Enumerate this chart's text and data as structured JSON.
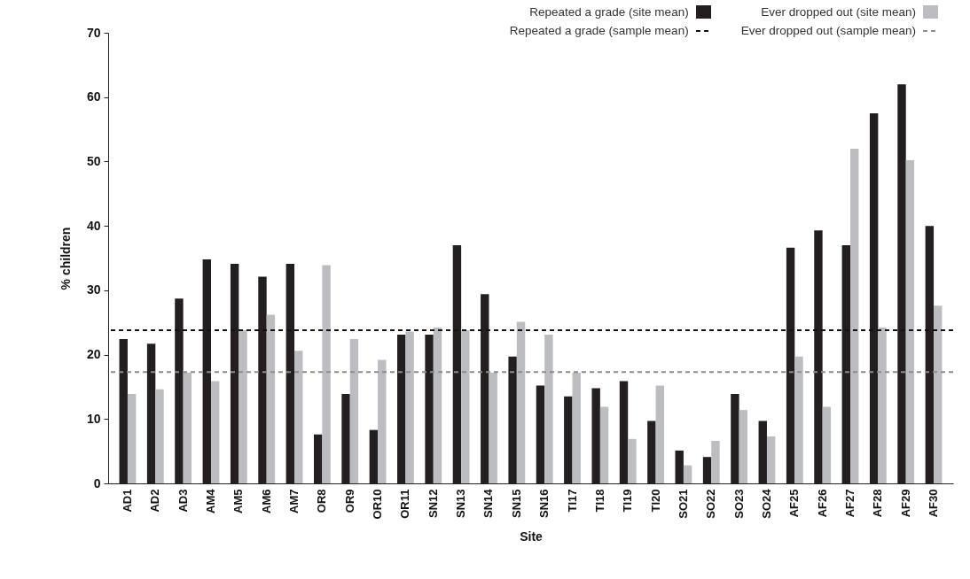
{
  "chart_data": {
    "type": "bar",
    "xlabel": "Site",
    "ylabel": "% children",
    "categories": [
      "AD1",
      "AD2",
      "AD3",
      "AM4",
      "AM5",
      "AM6",
      "AM7",
      "OR8",
      "OR9",
      "OR10",
      "OR11",
      "SN12",
      "SN13",
      "SN14",
      "SN15",
      "SN16",
      "TI17",
      "TI18",
      "TI19",
      "TI20",
      "SO21",
      "SO22",
      "SO23",
      "SO24",
      "AF25",
      "AF26",
      "AF27",
      "AF28",
      "AF29",
      "AF30"
    ],
    "series": [
      {
        "name": "Repeated a grade (site mean)",
        "color": "#231f20",
        "values": [
          22.4,
          21.7,
          28.7,
          34.8,
          34.1,
          32.1,
          34.1,
          7.6,
          13.9,
          8.3,
          23.1,
          23.1,
          37.0,
          29.4,
          19.7,
          15.2,
          13.5,
          14.8,
          15.9,
          9.7,
          5.1,
          4.1,
          13.9,
          9.7,
          36.6,
          39.3,
          37.0,
          57.5,
          62.0,
          40.0
        ]
      },
      {
        "name": "Ever dropped out (site mean)",
        "color": "#bcbdc0",
        "values": [
          13.9,
          14.6,
          17.2,
          15.9,
          23.8,
          26.2,
          20.6,
          33.9,
          22.4,
          19.2,
          23.6,
          24.2,
          23.8,
          17.2,
          25.1,
          23.1,
          17.2,
          11.9,
          6.9,
          15.2,
          2.8,
          6.6,
          11.4,
          7.3,
          19.7,
          11.9,
          52.0,
          24.2,
          50.2,
          27.6
        ]
      }
    ],
    "ref_lines": [
      {
        "axis": "y",
        "value": 23.8,
        "label": "Repeated a grade (sample mean)",
        "color": "#111111",
        "line_style": "dashed"
      },
      {
        "axis": "y",
        "value": 17.3,
        "label": "Ever dropped out (sample mean)",
        "color": "#8c8c8c",
        "line_style": "dashed"
      }
    ],
    "ylim": [
      0,
      70
    ],
    "yticks": [
      0,
      10,
      20,
      30,
      40,
      50,
      60,
      70
    ],
    "grid": false,
    "legend": "top right"
  }
}
